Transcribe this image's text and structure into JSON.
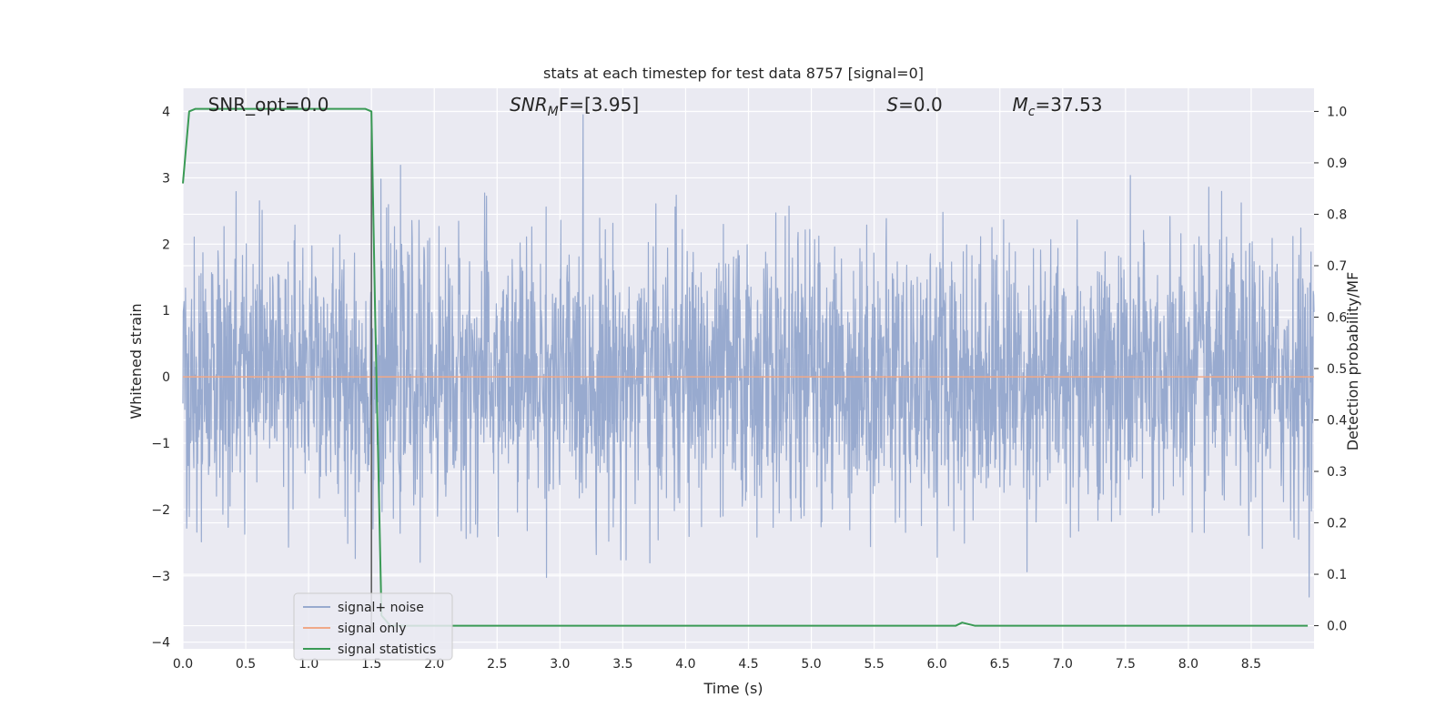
{
  "chart_data": {
    "type": "line",
    "title": "stats at each timestep for test data 8757 [signal=0]",
    "xlabel": "Time (s)",
    "ylabel": "Whitened strain",
    "y2label": "Detection probability/MF",
    "xlim": [
      0,
      9.0
    ],
    "ylim": [
      -4.1,
      4.35
    ],
    "y2lim": [
      -0.045,
      1.045
    ],
    "xticks": [
      "0.0",
      "0.5",
      "1.0",
      "1.5",
      "2.0",
      "2.5",
      "3.0",
      "3.5",
      "4.0",
      "4.5",
      "5.0",
      "5.5",
      "6.0",
      "6.5",
      "7.0",
      "7.5",
      "8.0",
      "8.5"
    ],
    "yticks": [
      "4",
      "3",
      "2",
      "1",
      "0",
      "−1",
      "−2",
      "−3",
      "−4"
    ],
    "y2ticks": [
      "1.0",
      "0.9",
      "0.8",
      "0.7",
      "0.6",
      "0.5",
      "0.4",
      "0.3",
      "0.2",
      "0.1",
      "0.0"
    ],
    "grid": true,
    "legend_position": "lower-left",
    "annotations": [
      {
        "text": "SNR_opt=0.0",
        "x": 0.2,
        "y": 4.1
      },
      {
        "text_main": "SNR",
        "text_sub": "M",
        "text_after": "F=[3.95]",
        "x": 2.6,
        "y": 4.1
      },
      {
        "text_main": "S",
        "text_after": "=0.0",
        "x": 5.6,
        "y": 4.1
      },
      {
        "text_main": "M",
        "text_sub": "c",
        "text_after": "=37.53",
        "x": 6.6,
        "y": 4.1
      }
    ],
    "vline": {
      "x": 1.5,
      "y_from": -3.8,
      "y_to": 4.0
    },
    "series": [
      {
        "name": "signal+ noise",
        "color": "#98aacf",
        "style": "gaussian-noise",
        "sigma": 1.0,
        "range": [
          -3.75,
          3.95
        ]
      },
      {
        "name": "signal only",
        "color": "#f0a988",
        "x": [
          0,
          9.0
        ],
        "y": [
          0,
          0
        ]
      },
      {
        "name": "signal statistics",
        "color": "#3a9a55",
        "axis": "right",
        "x": [
          0.0,
          0.05,
          0.1,
          0.2,
          0.5,
          1.0,
          1.45,
          1.5,
          1.53,
          1.58,
          1.65,
          1.8,
          2.5,
          6.0,
          6.15,
          6.2,
          6.3,
          8.95
        ],
        "y": [
          0.86,
          1.0,
          1.005,
          1.005,
          1.005,
          1.005,
          1.005,
          1.0,
          0.6,
          0.02,
          0.0,
          0.0,
          0.0,
          0.0,
          0.0,
          0.006,
          0.0,
          0.0
        ]
      }
    ]
  }
}
